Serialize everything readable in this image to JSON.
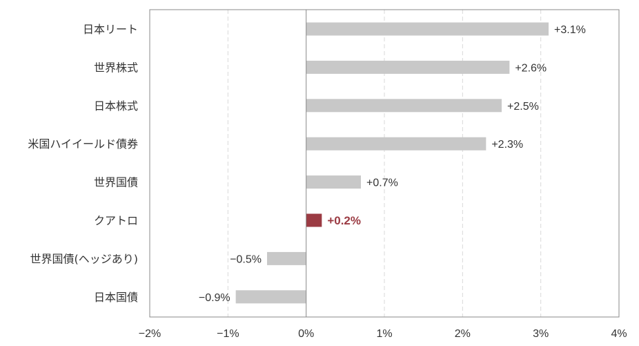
{
  "chart_data": {
    "type": "bar",
    "orientation": "horizontal",
    "categories": [
      "日本リート",
      "世界株式",
      "日本株式",
      "米国ハイイールド債券",
      "世界国債",
      "クアトロ",
      "世界国債(ヘッジあり)",
      "日本国債"
    ],
    "values": [
      3.1,
      2.6,
      2.5,
      2.3,
      0.7,
      0.2,
      -0.5,
      -0.9
    ],
    "value_labels": [
      "+3.1%",
      "+2.6%",
      "+2.5%",
      "+2.3%",
      "+0.7%",
      "+0.2%",
      "−0.5%",
      "−0.9%"
    ],
    "highlight_category": "クアトロ",
    "xlim": [
      -2,
      4
    ],
    "xticks": [
      -2,
      -1,
      0,
      1,
      2,
      3,
      4
    ],
    "xtick_labels": [
      "−2%",
      "−1%",
      "0%",
      "1%",
      "2%",
      "3%",
      "4%"
    ],
    "grid": "vertical dashed",
    "legend": "none",
    "colors": {
      "bar": "#c8c8c8",
      "highlight": "#9b3b43",
      "grid": "#d9d9d9",
      "axis": "#888888",
      "text": "#333333"
    }
  }
}
